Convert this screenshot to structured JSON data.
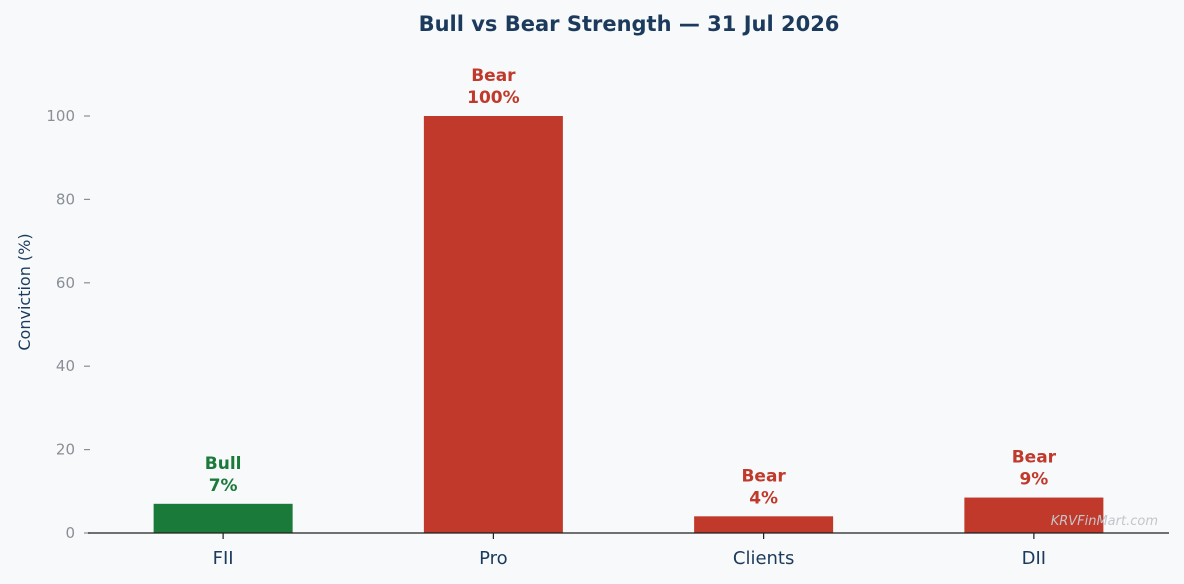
{
  "chart_data": {
    "type": "bar",
    "title": "Bull vs Bear Strength — 31 Jul 2026",
    "xlabel": "",
    "ylabel": "Conviction (%)",
    "ylim": [
      0,
      112
    ],
    "yticks": [
      0,
      20,
      40,
      60,
      80,
      100
    ],
    "categories": [
      "FII",
      "Pro",
      "Clients",
      "DII"
    ],
    "values": [
      7,
      100,
      4,
      8.5
    ],
    "bar_labels": [
      {
        "sentiment": "Bull",
        "value_text": "7%"
      },
      {
        "sentiment": "Bear",
        "value_text": "100%"
      },
      {
        "sentiment": "Bear",
        "value_text": "4%"
      },
      {
        "sentiment": "Bear",
        "value_text": "9%"
      }
    ],
    "grid": false,
    "colors": {
      "Bull": "#1a7a3a",
      "Bear": "#c0392b"
    }
  },
  "watermark": "KRVFinMart.com"
}
